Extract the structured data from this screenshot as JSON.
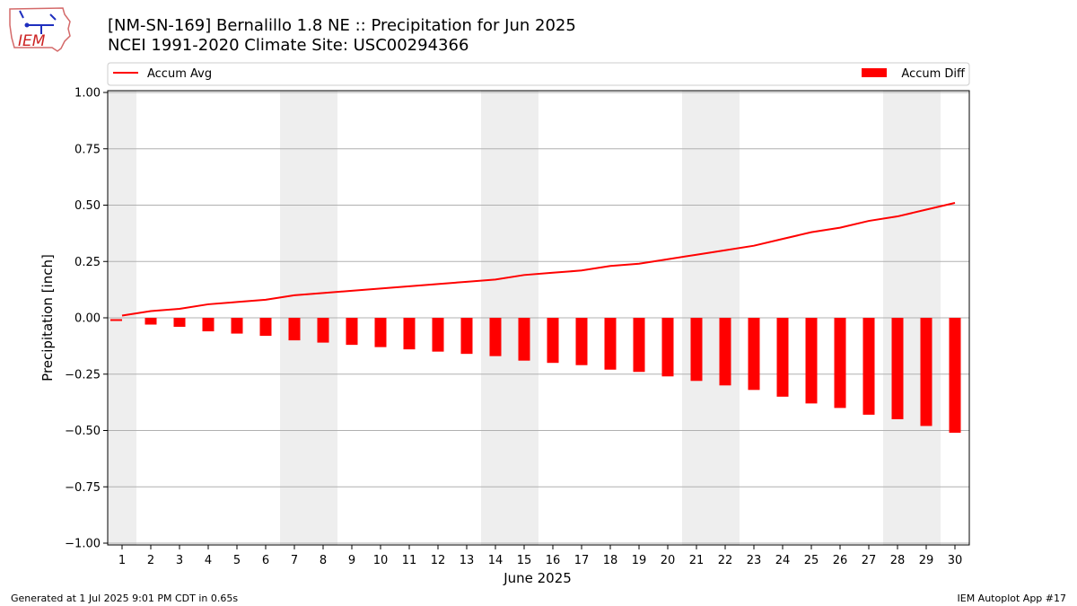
{
  "header": {
    "title_line1": "[NM-SN-169] Bernalillo 1.8 NE :: Precipitation for Jun 2025",
    "title_line2": "NCEI 1991-2020 Climate Site: USC00294366"
  },
  "logo": {
    "text": "IEM",
    "icon": "iem-iowa-logo"
  },
  "footer": {
    "generated": "Generated at 1 Jul 2025 9:01 PM CDT in 0.65s",
    "app": "IEM Autoplot App #17"
  },
  "colors": {
    "series": "#ff0000",
    "weekend_band": "#eeeeee",
    "grid": "#b0b0b0"
  },
  "chart_data": {
    "type": "bar",
    "xlabel": "June 2025",
    "ylabel": "Precipitation [inch]",
    "ylim": [
      -1.0,
      1.0
    ],
    "yticks": [
      1.0,
      0.75,
      0.5,
      0.25,
      0.0,
      -0.25,
      -0.5,
      -0.75,
      -1.0
    ],
    "ytick_labels": [
      "1.00",
      "0.75",
      "0.50",
      "0.25",
      "0.00",
      "−0.25",
      "−0.50",
      "−0.75",
      "−1.00"
    ],
    "grid": true,
    "legend_placement": "top",
    "categories": [
      "1",
      "2",
      "3",
      "4",
      "5",
      "6",
      "7",
      "8",
      "9",
      "10",
      "11",
      "12",
      "13",
      "14",
      "15",
      "16",
      "17",
      "18",
      "19",
      "20",
      "21",
      "22",
      "23",
      "24",
      "25",
      "26",
      "27",
      "28",
      "29",
      "30"
    ],
    "weekend_days": [
      1,
      7,
      8,
      14,
      15,
      21,
      22,
      28,
      29
    ],
    "series": [
      {
        "name": "Accum Avg",
        "kind": "line",
        "values": [
          0.01,
          0.03,
          0.04,
          0.06,
          0.07,
          0.08,
          0.1,
          0.11,
          0.12,
          0.13,
          0.14,
          0.15,
          0.16,
          0.17,
          0.19,
          0.2,
          0.21,
          0.23,
          0.24,
          0.26,
          0.28,
          0.3,
          0.32,
          0.35,
          0.38,
          0.4,
          0.43,
          0.45,
          0.48,
          0.51
        ]
      },
      {
        "name": "Accum Diff",
        "kind": "bar",
        "values": [
          -0.01,
          -0.03,
          -0.04,
          -0.06,
          -0.07,
          -0.08,
          -0.1,
          -0.11,
          -0.12,
          -0.13,
          -0.14,
          -0.15,
          -0.16,
          -0.17,
          -0.19,
          -0.2,
          -0.21,
          -0.23,
          -0.24,
          -0.26,
          -0.28,
          -0.3,
          -0.32,
          -0.35,
          -0.38,
          -0.4,
          -0.43,
          -0.45,
          -0.48,
          -0.51
        ]
      }
    ]
  }
}
